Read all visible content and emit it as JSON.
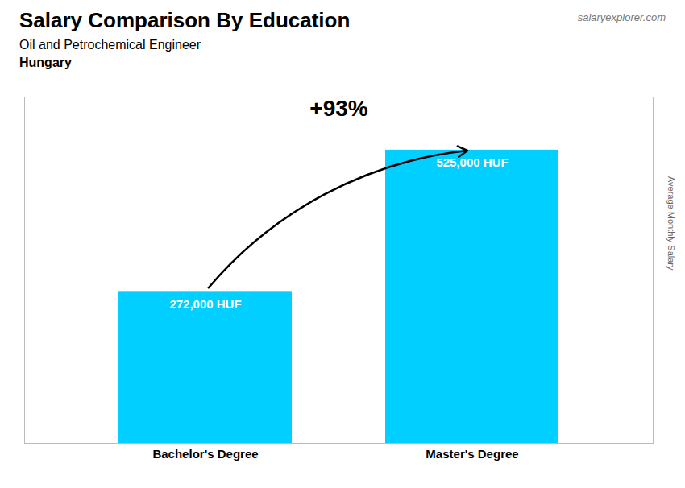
{
  "chart_data": {
    "type": "bar",
    "title": "Salary Comparison By Education",
    "subtitle": "Oil and Petrochemical Engineer",
    "ylabel": "Average Monthly Salary",
    "annotations": [
      "Hungary",
      "+93%",
      "salaryexplorer.com"
    ],
    "categories": [
      "Bachelor's Degree",
      "Master's Degree"
    ],
    "values": [
      272000,
      525000
    ],
    "value_labels": [
      "272,000 HUF",
      "525,000 HUF"
    ],
    "data_labels": true,
    "color": "#00cfff",
    "ylim": [
      0,
      620000
    ],
    "grid": false,
    "tick_labels": "x"
  }
}
